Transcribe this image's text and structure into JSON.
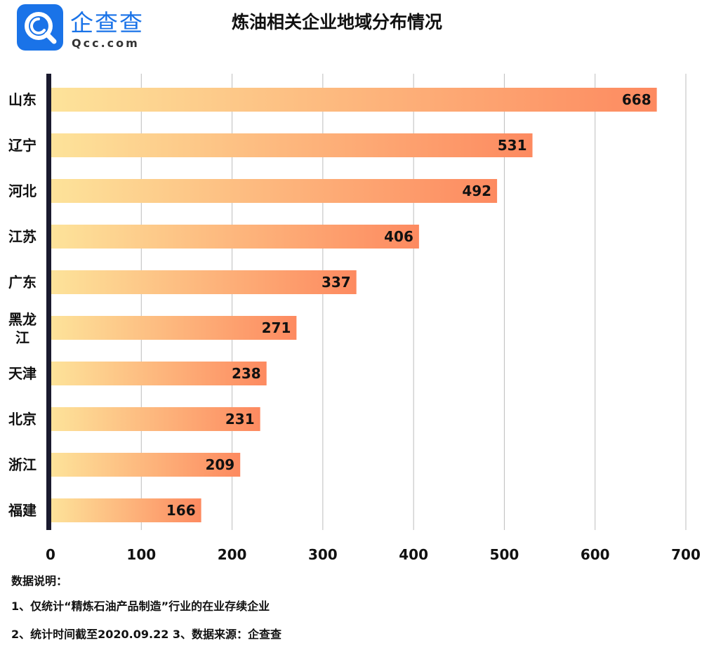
{
  "brand": {
    "name": "企查查",
    "domain": "Qcc.com",
    "icon": "qcc-magnifier-logo-icon",
    "color": "#1a73e8"
  },
  "chart_data": {
    "type": "bar",
    "orientation": "horizontal",
    "title": "炼油相关企业地域分布情况",
    "categories": [
      "山东",
      "辽宁",
      "河北",
      "江苏",
      "广东",
      "黑龙江",
      "天津",
      "北京",
      "浙江",
      "福建"
    ],
    "values": [
      668,
      531,
      492,
      406,
      337,
      271,
      238,
      231,
      209,
      166
    ],
    "xlim": [
      0,
      700
    ],
    "xticks": [
      0,
      100,
      200,
      300,
      400,
      500,
      600,
      700
    ],
    "grid": "vertical",
    "bar_gradient": [
      "#fde39a",
      "#fd8a60"
    ]
  },
  "notes": {
    "heading": "数据说明：",
    "line1": "1、仅统计“精炼石油产品制造”行业的在业存续企业",
    "line2": "2、统计时间截至2020.09.22   3、数据来源：企查查"
  }
}
